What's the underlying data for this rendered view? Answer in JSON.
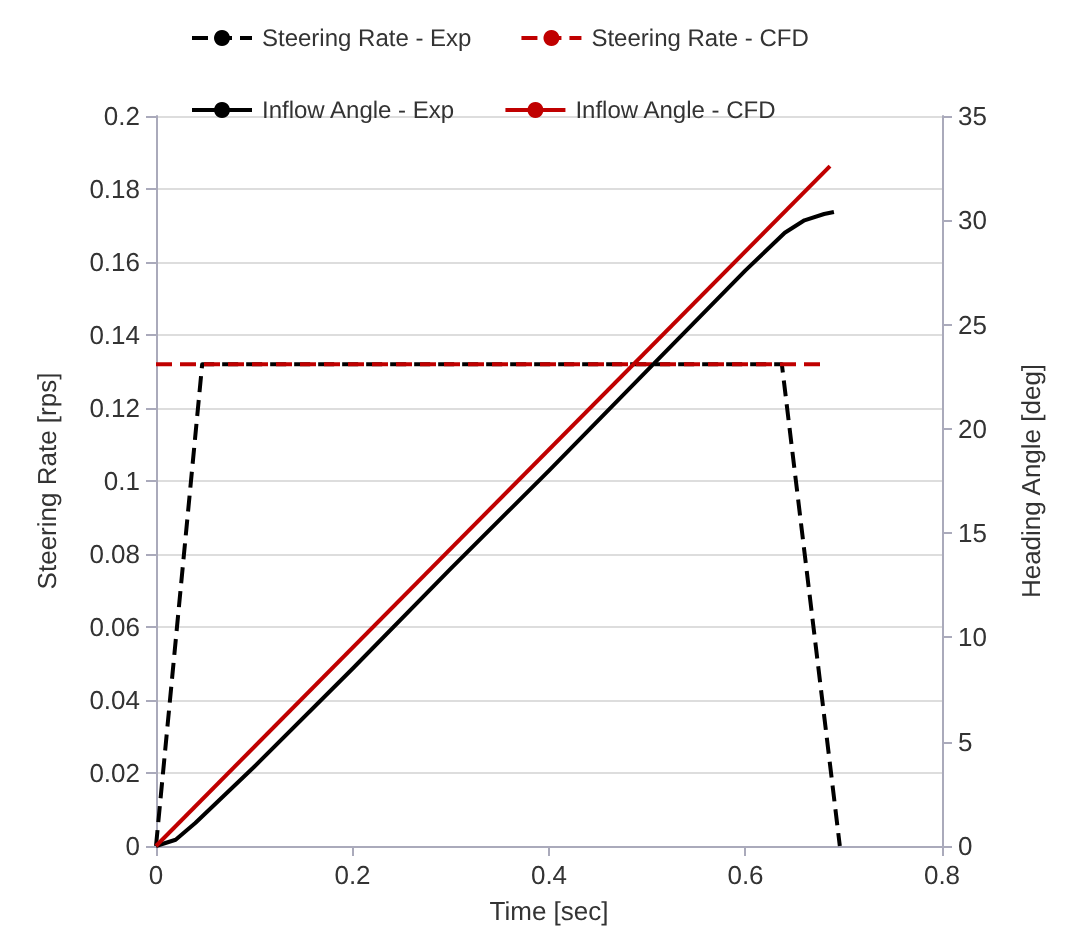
{
  "chart_data": {
    "type": "line",
    "xlabel": "Time [sec]",
    "ylabel": "Steering Rate [rps]",
    "y2label": "Heading Angle [deg]",
    "xlim": [
      0,
      0.8
    ],
    "xticks": [
      0,
      0.2,
      0.4,
      0.6,
      0.8
    ],
    "ylim": [
      0,
      0.2
    ],
    "yticks": [
      0,
      0.02,
      0.04,
      0.06,
      0.08,
      0.1,
      0.12,
      0.14,
      0.16,
      0.18,
      0.2
    ],
    "y2lim": [
      0,
      35
    ],
    "y2ticks": [
      0,
      5,
      10,
      15,
      20,
      25,
      30,
      35
    ],
    "grid": "y",
    "legend": "top",
    "marker": "none",
    "series": [
      {
        "name": "Steering Rate - Exp",
        "color": "#000000",
        "line_style": "dashed",
        "x": [
          0,
          0.047,
          0.637,
          0.696
        ],
        "values": [
          0,
          0.132,
          0.132,
          0
        ]
      },
      {
        "name": "Steering Rate - CFD",
        "color": "#c00000",
        "line_style": "dashed",
        "x": [
          0,
          0.68
        ],
        "values": [
          0.132,
          0.132
        ]
      },
      {
        "name": "Inflow Angle - Exp",
        "color": "#000000",
        "line_style": "solid",
        "axis": "y2",
        "x": [
          0,
          0.02,
          0.04,
          0.1,
          0.2,
          0.3,
          0.4,
          0.5,
          0.6,
          0.64,
          0.66,
          0.68,
          0.69
        ],
        "values": [
          0,
          0.3,
          1.1,
          3.8,
          8.5,
          13.3,
          18.0,
          22.8,
          27.6,
          29.4,
          30.0,
          30.3,
          30.4
        ]
      },
      {
        "name": "Inflow Angle - CFD",
        "color": "#c00000",
        "line_style": "solid",
        "axis": "y2",
        "x": [
          0,
          0.686
        ],
        "values": [
          0,
          32.6
        ]
      }
    ]
  }
}
